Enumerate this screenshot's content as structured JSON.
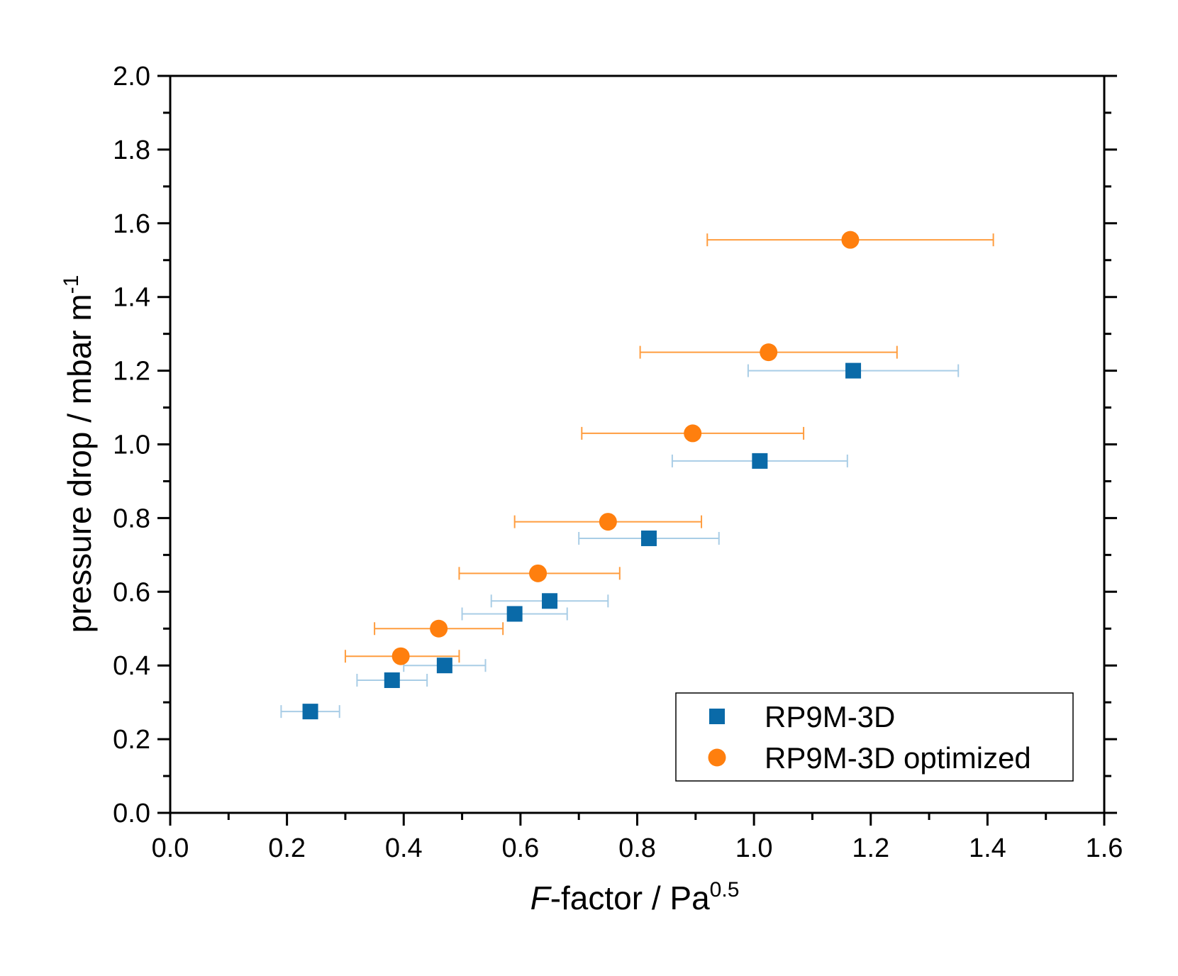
{
  "chart_data": {
    "type": "scatter",
    "title": "",
    "xlabel": {
      "italic": "F",
      "text": "-factor / Pa",
      "sup": "0.5"
    },
    "ylabel": {
      "text": "pressure drop / mbar m",
      "sup": "-1"
    },
    "xlim": [
      0.0,
      1.6
    ],
    "ylim": [
      0.0,
      2.0
    ],
    "xticks": [
      "0.0",
      "0.2",
      "0.4",
      "0.6",
      "0.8",
      "1.0",
      "1.2",
      "1.4",
      "1.6"
    ],
    "yticks": [
      "0.0",
      "0.2",
      "0.4",
      "0.6",
      "0.8",
      "1.0",
      "1.2",
      "1.4",
      "1.6",
      "1.8",
      "2.0"
    ],
    "grid": false,
    "legend_position": "bottom-right",
    "series": [
      {
        "name": "RP9M-3D",
        "marker": "square",
        "color": "#0a6aa8",
        "errorbar_color": "#a9cde6",
        "points": [
          {
            "x": 0.24,
            "y": 0.275,
            "xerr_low": 0.19,
            "xerr_high": 0.29
          },
          {
            "x": 0.38,
            "y": 0.36,
            "xerr_low": 0.32,
            "xerr_high": 0.44
          },
          {
            "x": 0.47,
            "y": 0.4,
            "xerr_low": 0.4,
            "xerr_high": 0.54
          },
          {
            "x": 0.59,
            "y": 0.54,
            "xerr_low": 0.5,
            "xerr_high": 0.68
          },
          {
            "x": 0.65,
            "y": 0.575,
            "xerr_low": 0.55,
            "xerr_high": 0.75
          },
          {
            "x": 0.82,
            "y": 0.745,
            "xerr_low": 0.7,
            "xerr_high": 0.94
          },
          {
            "x": 1.01,
            "y": 0.955,
            "xerr_low": 0.86,
            "xerr_high": 1.16
          },
          {
            "x": 1.17,
            "y": 1.2,
            "xerr_low": 0.99,
            "xerr_high": 1.35
          }
        ]
      },
      {
        "name": "RP9M-3D optimized",
        "marker": "circle",
        "color": "#ff7f0e",
        "errorbar_color": "#ff9d3f",
        "points": [
          {
            "x": 0.395,
            "y": 0.425,
            "xerr_low": 0.3,
            "xerr_high": 0.495
          },
          {
            "x": 0.46,
            "y": 0.5,
            "xerr_low": 0.35,
            "xerr_high": 0.57
          },
          {
            "x": 0.63,
            "y": 0.65,
            "xerr_low": 0.495,
            "xerr_high": 0.77
          },
          {
            "x": 0.75,
            "y": 0.79,
            "xerr_low": 0.59,
            "xerr_high": 0.91
          },
          {
            "x": 0.895,
            "y": 1.03,
            "xerr_low": 0.705,
            "xerr_high": 1.085
          },
          {
            "x": 1.025,
            "y": 1.25,
            "xerr_low": 0.805,
            "xerr_high": 1.245
          },
          {
            "x": 1.165,
            "y": 1.555,
            "xerr_low": 0.92,
            "xerr_high": 1.41
          }
        ]
      }
    ]
  }
}
